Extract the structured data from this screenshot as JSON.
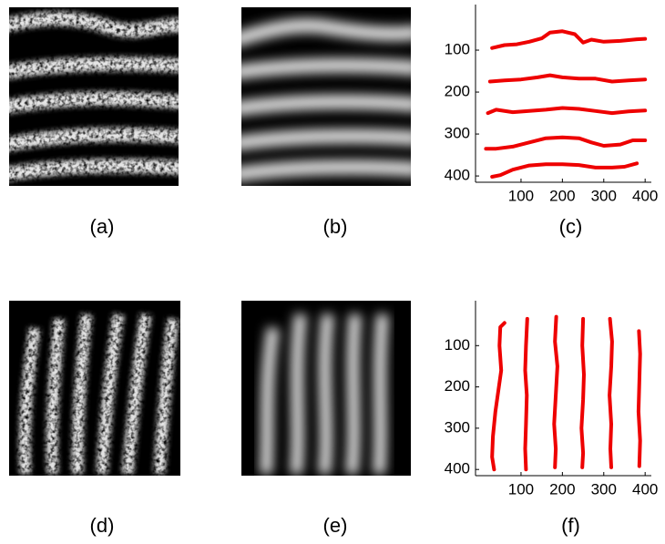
{
  "images": [
    {
      "caption": "(a)"
    },
    {
      "caption": "(b)"
    },
    {
      "caption": "(d)"
    },
    {
      "caption": "(e)"
    }
  ],
  "chart_data": [
    {
      "type": "line",
      "caption": "(c)",
      "xlim": [
        -10,
        415
      ],
      "ylim": [
        415,
        0
      ],
      "xticks": [
        100,
        200,
        300,
        400
      ],
      "yticks": [
        100,
        200,
        300,
        400
      ],
      "series": [
        {
          "color": "#ee0000",
          "x": [
            30,
            60,
            90,
            120,
            150,
            170,
            200,
            230,
            250,
            270,
            300,
            340,
            380,
            400
          ],
          "values": [
            95,
            88,
            86,
            80,
            72,
            58,
            55,
            62,
            82,
            75,
            80,
            78,
            74,
            73
          ]
        },
        {
          "color": "#ee0000",
          "x": [
            25,
            60,
            100,
            140,
            170,
            200,
            240,
            280,
            320,
            360,
            400
          ],
          "values": [
            175,
            172,
            170,
            165,
            160,
            165,
            168,
            168,
            175,
            172,
            170
          ]
        },
        {
          "color": "#ee0000",
          "x": [
            20,
            40,
            80,
            120,
            160,
            200,
            240,
            280,
            320,
            360,
            400
          ],
          "values": [
            250,
            242,
            248,
            245,
            242,
            238,
            240,
            245,
            250,
            246,
            244
          ]
        },
        {
          "color": "#ee0000",
          "x": [
            15,
            40,
            80,
            120,
            160,
            200,
            240,
            270,
            300,
            340,
            370,
            400
          ],
          "values": [
            335,
            335,
            330,
            320,
            310,
            308,
            310,
            320,
            328,
            325,
            315,
            315
          ]
        },
        {
          "color": "#ee0000",
          "x": [
            30,
            50,
            80,
            120,
            160,
            200,
            240,
            280,
            320,
            350,
            380
          ],
          "values": [
            402,
            398,
            385,
            375,
            372,
            372,
            374,
            380,
            380,
            378,
            370
          ]
        }
      ]
    },
    {
      "type": "line",
      "caption": "(f)",
      "xlim": [
        -10,
        415
      ],
      "ylim": [
        415,
        0
      ],
      "xticks": [
        100,
        200,
        300,
        400
      ],
      "yticks": [
        100,
        200,
        300,
        400
      ],
      "series": [
        {
          "color": "#ee0000",
          "x": [
            60,
            50,
            48,
            52,
            45,
            38,
            32,
            30,
            35
          ],
          "values": [
            45,
            55,
            100,
            160,
            210,
            260,
            320,
            370,
            400
          ]
        },
        {
          "color": "#ee0000",
          "x": [
            115,
            112,
            110,
            114,
            112,
            110,
            112
          ],
          "values": [
            35,
            100,
            160,
            220,
            290,
            350,
            400
          ]
        },
        {
          "color": "#ee0000",
          "x": [
            185,
            182,
            188,
            184,
            180,
            184,
            182
          ],
          "values": [
            30,
            90,
            150,
            220,
            290,
            350,
            395
          ]
        },
        {
          "color": "#ee0000",
          "x": [
            250,
            248,
            252,
            250,
            246,
            250,
            248
          ],
          "values": [
            35,
            100,
            170,
            230,
            300,
            360,
            395
          ]
        },
        {
          "color": "#ee0000",
          "x": [
            315,
            320,
            318,
            314,
            318,
            316,
            318
          ],
          "values": [
            35,
            90,
            150,
            220,
            290,
            350,
            395
          ]
        },
        {
          "color": "#ee0000",
          "x": [
            385,
            388,
            386,
            384,
            388,
            386
          ],
          "values": [
            65,
            120,
            190,
            260,
            330,
            392
          ]
        }
      ]
    }
  ]
}
